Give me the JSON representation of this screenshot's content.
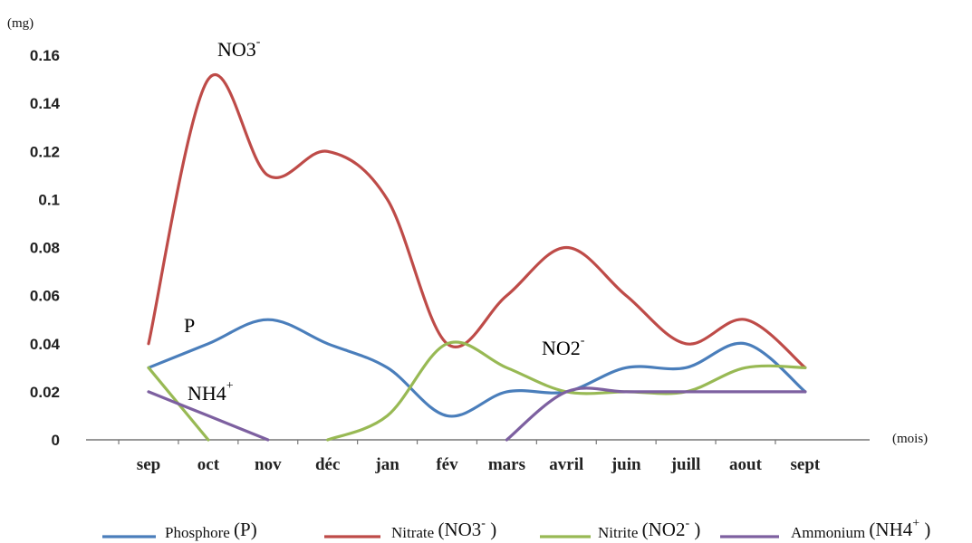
{
  "chart_data": {
    "type": "line",
    "ylabel": "(mg)",
    "xlabel": "(mois)",
    "ylim": [
      0,
      0.16
    ],
    "yticks": [
      "0",
      "0.02",
      "0.04",
      "0.06",
      "0.08",
      "0.1",
      "0.12",
      "0.14",
      "0.16"
    ],
    "categories": [
      "sep",
      "oct",
      "nov",
      "déc",
      "jan",
      "fév",
      "mars",
      "avril",
      "juin",
      "juill",
      "aout",
      "sept"
    ],
    "grid": false,
    "legend_position": "bottom",
    "series": [
      {
        "key": "P",
        "color": "#4a7ebb",
        "values": [
          0.03,
          0.04,
          0.05,
          0.04,
          0.03,
          0.01,
          0.02,
          0.02,
          0.03,
          0.03,
          0.04,
          0.02
        ]
      },
      {
        "key": "NO3",
        "color": "#be4b48",
        "values": [
          0.04,
          0.15,
          0.11,
          0.12,
          0.1,
          0.04,
          0.06,
          0.08,
          0.06,
          0.04,
          0.05,
          0.03
        ]
      },
      {
        "key": "NO2",
        "color": "#98b954",
        "values": [
          0.03,
          0,
          null,
          0,
          0.01,
          0.04,
          0.03,
          0.02,
          0.02,
          0.02,
          0.03,
          0.03
        ]
      },
      {
        "key": "NH4",
        "color": "#7d60a0",
        "values": [
          0.02,
          0.01,
          0,
          null,
          null,
          null,
          0,
          0.02,
          0.02,
          0.02,
          0.02,
          0.02
        ]
      }
    ],
    "annotations": [
      {
        "series": "NO3",
        "base": "NO3",
        "sup": "-"
      },
      {
        "series": "P",
        "base": "P",
        "sup": ""
      },
      {
        "series": "NO2",
        "base": "NO2",
        "sup": "-"
      },
      {
        "series": "NH4",
        "base": "NH4",
        "sup": "+"
      }
    ],
    "legend": [
      {
        "series": "P",
        "name": "Phosphore",
        "formula": "(P)",
        "sup": ""
      },
      {
        "series": "NO3",
        "name": "Nitrate",
        "formula": "(NO3",
        "sup": "-",
        "close": ")"
      },
      {
        "series": "NO2",
        "name": "Nitrite",
        "formula": "(NO2",
        "sup": "-",
        "close": ")"
      },
      {
        "series": "NH4",
        "name": "Ammonium",
        "formula": "(NH4",
        "sup": "+",
        "close": ")"
      }
    ]
  }
}
